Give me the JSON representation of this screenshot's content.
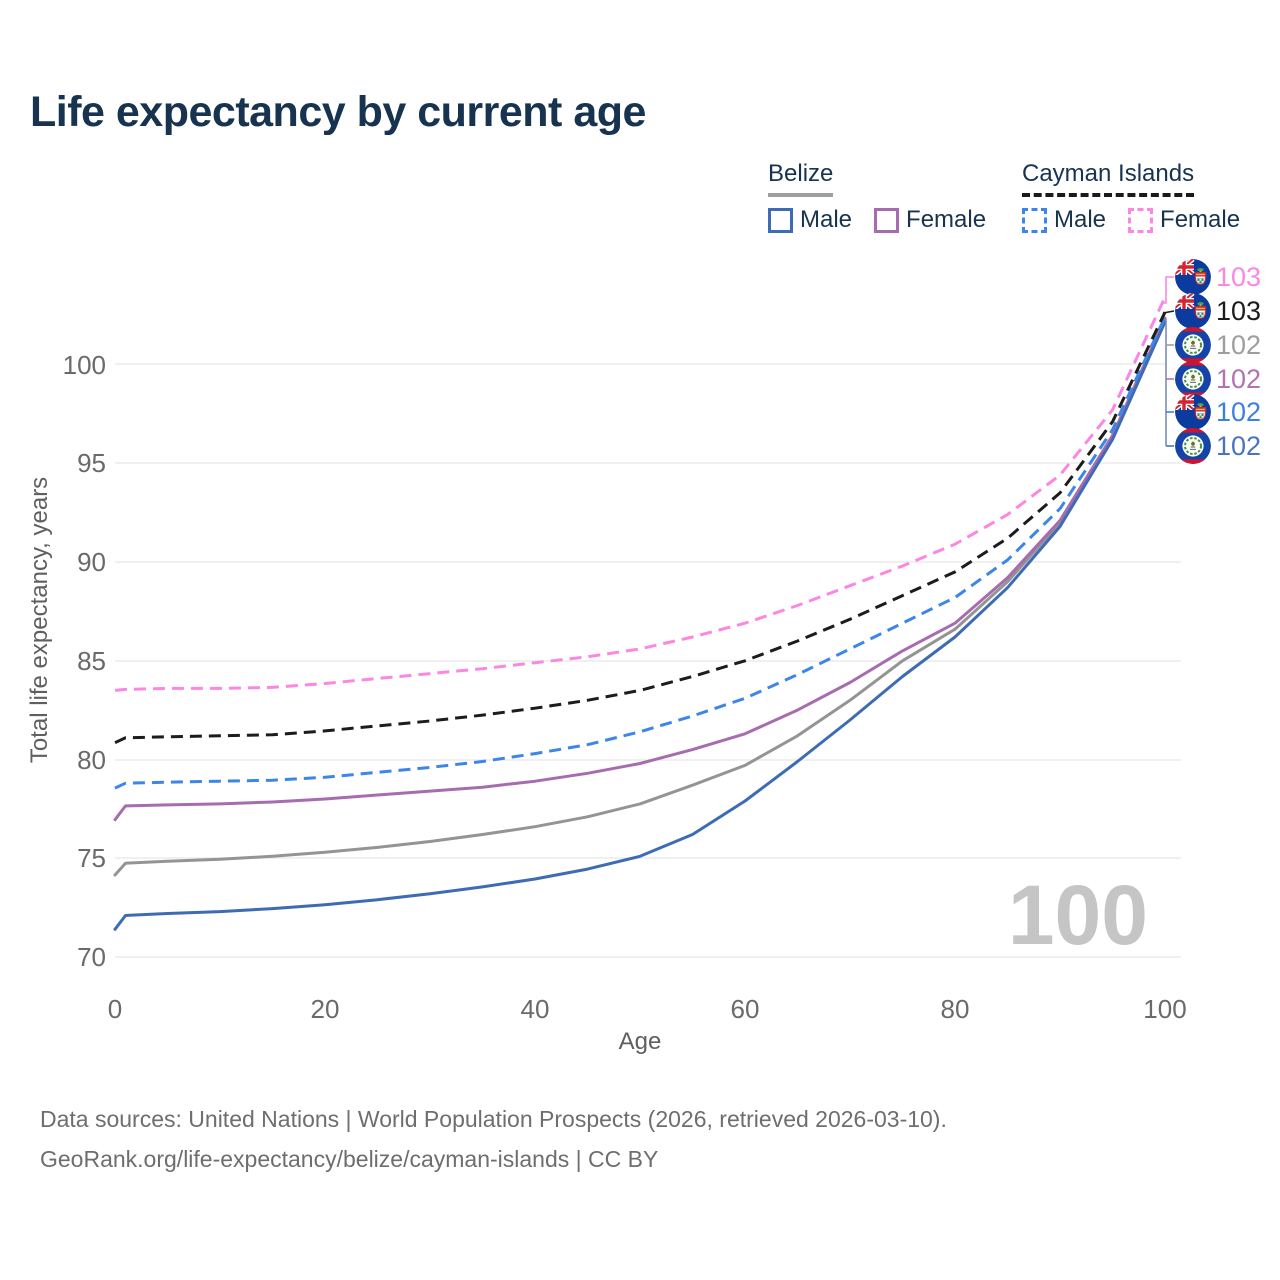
{
  "page": {
    "title": "Life expectancy by current age"
  },
  "legend": {
    "belize": {
      "label": "Belize",
      "male": "Male",
      "female": "Female",
      "male_color": "#3d6cb4",
      "female_color": "#a76cb0",
      "underline_color": "#9e9e9e"
    },
    "cayman": {
      "label": "Cayman Islands",
      "male": "Male",
      "female": "Female",
      "male_color": "#3d85e8",
      "female_color": "#fb87e3",
      "underline_color": "#1a1a1a"
    }
  },
  "watermark_age": "100",
  "chart_data": {
    "type": "line",
    "title": "Life expectancy by current age",
    "xlabel": "Age",
    "ylabel": "Total life expectancy, years",
    "xlim": [
      0,
      100
    ],
    "ylim": [
      69.5,
      104
    ],
    "x_ticks": [
      0,
      20,
      40,
      60,
      80,
      100
    ],
    "y_ticks": [
      70,
      75,
      80,
      85,
      90,
      95,
      100
    ],
    "grid": "horizontal-only",
    "legend_position": "top-right",
    "ages": [
      0,
      1,
      5,
      10,
      15,
      20,
      25,
      30,
      35,
      40,
      45,
      50,
      55,
      60,
      65,
      70,
      75,
      80,
      85,
      90,
      95,
      100
    ],
    "series": [
      {
        "id": "belize-total",
        "name": "Belize",
        "country": "Belize",
        "sex": "Both",
        "color": "#949494",
        "line": "solid",
        "end_label": "102",
        "values": [
          74.15,
          74.75,
          74.85,
          74.95,
          75.1,
          75.3,
          75.55,
          75.85,
          76.2,
          76.6,
          77.1,
          77.75,
          78.7,
          79.7,
          81.2,
          83.0,
          85.0,
          86.6,
          89.0,
          92.0,
          96.3,
          102.3
        ]
      },
      {
        "id": "belize-female",
        "name": "Belize Female",
        "country": "Belize",
        "sex": "Female",
        "color": "#a76cb0",
        "line": "solid",
        "end_label": "102",
        "values": [
          76.95,
          77.65,
          77.7,
          77.75,
          77.85,
          78.0,
          78.2,
          78.4,
          78.6,
          78.9,
          79.3,
          79.8,
          80.5,
          81.3,
          82.5,
          83.9,
          85.5,
          86.9,
          89.2,
          92.1,
          96.4,
          102.35
        ]
      },
      {
        "id": "belize-male",
        "name": "Belize Male",
        "country": "Belize",
        "sex": "Male",
        "color": "#3d6cb4",
        "line": "solid",
        "end_label": "102",
        "values": [
          71.4,
          72.1,
          72.2,
          72.3,
          72.45,
          72.65,
          72.9,
          73.2,
          73.55,
          73.95,
          74.45,
          75.1,
          76.2,
          77.9,
          79.9,
          82.0,
          84.2,
          86.2,
          88.7,
          91.8,
          96.2,
          102.15
        ]
      },
      {
        "id": "cayman-male",
        "name": "Cayman Islands Male",
        "country": "Cayman Islands",
        "sex": "Male",
        "color": "#3d85e8",
        "line": "dashed",
        "end_label": "102",
        "values": [
          78.55,
          78.8,
          78.85,
          78.9,
          78.95,
          79.1,
          79.35,
          79.6,
          79.9,
          80.3,
          80.75,
          81.4,
          82.2,
          83.1,
          84.3,
          85.6,
          86.9,
          88.2,
          90.1,
          92.7,
          96.7,
          102.4
        ]
      },
      {
        "id": "cayman-total",
        "name": "Cayman Islands",
        "country": "Cayman Islands",
        "sex": "Both",
        "color": "#1c1c1c",
        "line": "dashed",
        "end_label": "103",
        "values": [
          80.85,
          81.1,
          81.15,
          81.2,
          81.25,
          81.45,
          81.7,
          81.95,
          82.25,
          82.6,
          83.0,
          83.5,
          84.2,
          85.0,
          86.0,
          87.1,
          88.3,
          89.5,
          91.2,
          93.5,
          97.1,
          102.65
        ]
      },
      {
        "id": "cayman-female",
        "name": "Cayman Islands Female",
        "country": "Cayman Islands",
        "sex": "Female",
        "color": "#fb87e3",
        "line": "dashed",
        "end_label": "103",
        "values": [
          83.5,
          83.55,
          83.6,
          83.6,
          83.65,
          83.85,
          84.1,
          84.35,
          84.6,
          84.9,
          85.2,
          85.6,
          86.2,
          86.9,
          87.8,
          88.8,
          89.8,
          90.9,
          92.4,
          94.4,
          97.7,
          103.4
        ]
      }
    ]
  },
  "end_labels": [
    {
      "value": "103",
      "color": "#fb87e3",
      "flag": "cayman",
      "series": "cayman-female"
    },
    {
      "value": "103",
      "color": "#1c1c1c",
      "flag": "cayman",
      "series": "cayman-total"
    },
    {
      "value": "102",
      "color": "#9e9e9e",
      "flag": "belize",
      "series": "belize-total"
    },
    {
      "value": "102",
      "color": "#b273b2",
      "flag": "belize",
      "series": "belize-female"
    },
    {
      "value": "102",
      "color": "#3b82e0",
      "flag": "cayman",
      "series": "cayman-male"
    },
    {
      "value": "102",
      "color": "#4a74c0",
      "flag": "belize",
      "series": "belize-male"
    }
  ],
  "footer": {
    "line1": "Data sources: United Nations | World Population Prospects (2026, retrieved 2026-03-10).",
    "line2": "GeoRank.org/life-expectancy/belize/cayman-islands | CC BY"
  }
}
